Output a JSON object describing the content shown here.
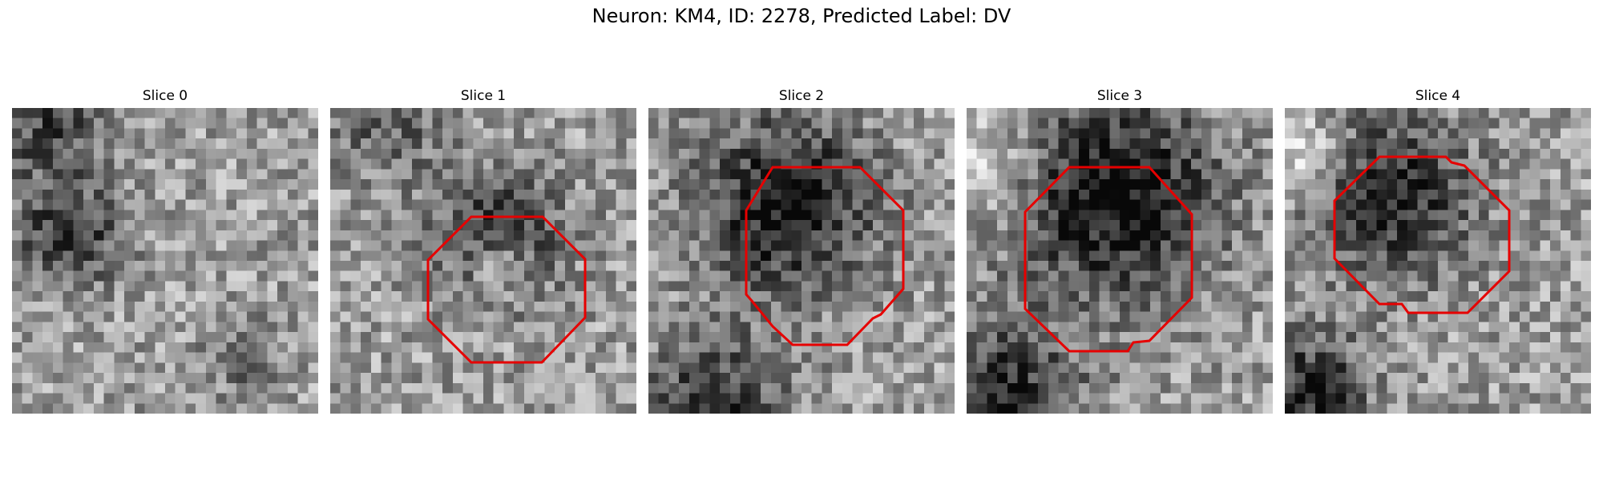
{
  "figure": {
    "title": "Neuron: KM4, ID: 2278, Predicted Label: DV",
    "outline_color": "#e60000",
    "panels": [
      {
        "title": "Slice 0",
        "seed": 11
      },
      {
        "title": "Slice 1",
        "seed": 23
      },
      {
        "title": "Slice 2",
        "seed": 37
      },
      {
        "title": "Slice 3",
        "seed": 51
      },
      {
        "title": "Slice 4",
        "seed": 67
      }
    ]
  }
}
